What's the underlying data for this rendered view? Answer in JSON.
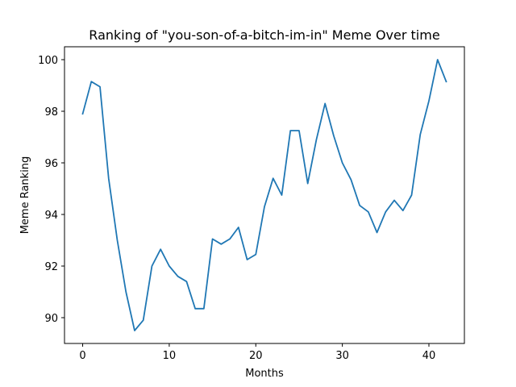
{
  "chart_data": {
    "type": "line",
    "title": "Ranking of \"you-son-of-a-bitch-im-in\" Meme Over time",
    "xlabel": "Months",
    "ylabel": "Meme Ranking",
    "xlim": [
      -2.1,
      44.1
    ],
    "ylim": [
      89.0,
      100.5
    ],
    "xticks": [
      0,
      10,
      20,
      30,
      40
    ],
    "yticks": [
      90,
      92,
      94,
      96,
      98,
      100
    ],
    "grid": false,
    "legend": "none",
    "series": [
      {
        "color": "#1f77b4",
        "x": [
          0,
          1,
          2,
          3,
          4,
          5,
          6,
          7,
          8,
          9,
          10,
          11,
          12,
          13,
          14,
          15,
          16,
          17,
          18,
          19,
          20,
          21,
          22,
          23,
          24,
          25,
          26,
          27,
          28,
          29,
          30,
          31,
          32,
          33,
          34,
          35,
          36,
          37,
          38,
          39,
          40,
          41,
          42
        ],
        "values": [
          97.9,
          99.15,
          98.95,
          95.4,
          93.0,
          91.0,
          89.5,
          89.9,
          92.0,
          92.65,
          92.0,
          91.6,
          91.4,
          90.35,
          90.35,
          93.05,
          92.85,
          93.05,
          93.5,
          92.25,
          92.45,
          94.3,
          95.4,
          94.75,
          97.25,
          97.25,
          95.2,
          96.9,
          98.3,
          97.05,
          96.0,
          95.35,
          94.35,
          94.1,
          93.3,
          94.1,
          94.55,
          94.15,
          94.75,
          97.1,
          98.4,
          100.0,
          99.15
        ]
      }
    ]
  }
}
